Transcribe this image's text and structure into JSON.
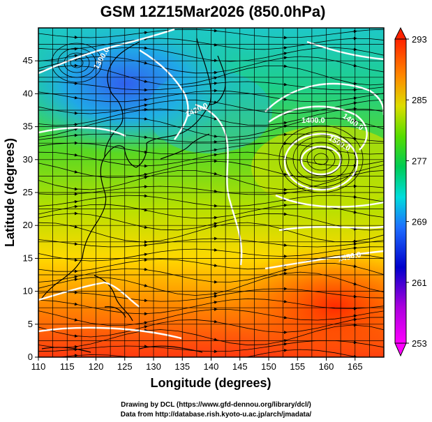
{
  "title": "GSM 12Z15Mar2026 (850.0hPa)",
  "xlabel": "Longitude (degrees)",
  "ylabel": "Latitude  (degrees)",
  "x_ticks": [
    "110",
    "115",
    "120",
    "125",
    "130",
    "135",
    "140",
    "145",
    "150",
    "155",
    "160",
    "165"
  ],
  "y_ticks": [
    "0",
    "5",
    "10",
    "15",
    "20",
    "25",
    "30",
    "35",
    "40",
    "45"
  ],
  "colorbar": {
    "labels": [
      "293",
      "285",
      "277",
      "269",
      "261",
      "253"
    ]
  },
  "contour_labels": [
    "1400.0",
    "1400.0",
    "1450.0",
    "1500.0",
    "1420.0",
    "1300.0"
  ],
  "credits": {
    "line1": "Drawing by DCL (https://www.gfd-dennou.org/library/dcl/)",
    "line2": "Data from http://database.rish.kyoto-u.ac.jp/arch/jmadata/"
  },
  "chart_data": {
    "type": "heatmap",
    "variable": "temperature (K) with wind streamlines and geopotential height contours",
    "title": "GSM 12Z15Mar2026 (850.0hPa)",
    "xlabel": "Longitude (degrees)",
    "ylabel": "Latitude  (degrees)",
    "xlim": [
      110,
      170
    ],
    "ylim": [
      0,
      50
    ],
    "colorbar_range": [
      253,
      293
    ],
    "colorbar_labels": [
      293,
      285,
      277,
      269,
      261,
      253
    ],
    "contour_labels": [
      "1400.0",
      "1400.0",
      "1450.0",
      "1500.0",
      "1420.0",
      "1300.0"
    ],
    "grid": true,
    "colormap": [
      "#ff00ff",
      "#0000cc",
      "#2277ff",
      "#00e0e0",
      "#00cc66",
      "#66dd00",
      "#dddd00",
      "#ff8800",
      "#ff2200"
    ]
  }
}
